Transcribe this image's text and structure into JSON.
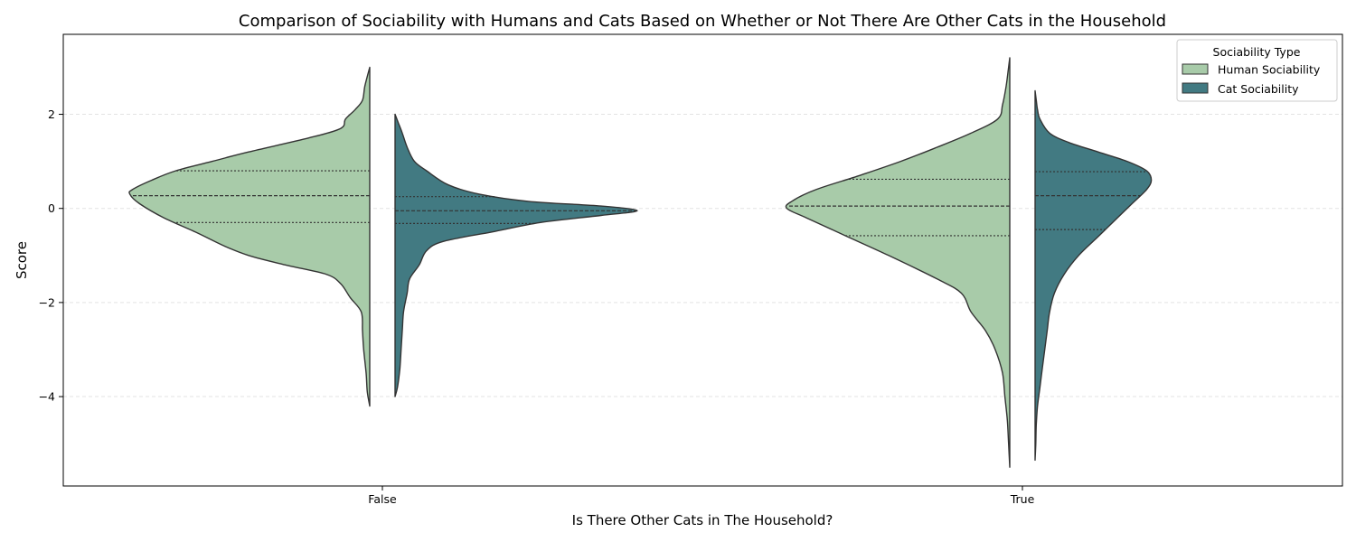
{
  "chart_data": {
    "type": "violin",
    "title": "Comparison of Sociability with Humans and Cats Based on Whether or Not There Are Other Cats in the Household",
    "xlabel": "Is There Other Cats in The Household?",
    "ylabel": "Score",
    "categories": [
      "False",
      "True"
    ],
    "ylim": [
      -5.9,
      3.7
    ],
    "yticks": [
      -4,
      -2,
      0,
      2
    ],
    "ytick_labels": [
      "−4",
      "−2",
      "0",
      "2"
    ],
    "grid": "horizontal dashed",
    "split": true,
    "inner": "quartile",
    "legend": {
      "title": "Sociability Type",
      "position": "top-right",
      "entries": [
        "Human Sociability",
        "Cat Sociability"
      ]
    },
    "series": [
      {
        "name": "Human Sociability",
        "color": "#a8cba9",
        "side": "left",
        "groups": [
          {
            "category": "False",
            "quartiles": [
              -0.3,
              0.27,
              0.8
            ],
            "profile": [
              [
                -4.2,
                0.0
              ],
              [
                -3.9,
                0.01
              ],
              [
                -3.5,
                0.015
              ],
              [
                -3.0,
                0.025
              ],
              [
                -2.6,
                0.03
              ],
              [
                -2.2,
                0.035
              ],
              [
                -1.9,
                0.08
              ],
              [
                -1.6,
                0.12
              ],
              [
                -1.4,
                0.18
              ],
              [
                -1.2,
                0.35
              ],
              [
                -1.0,
                0.5
              ],
              [
                -0.8,
                0.6
              ],
              [
                -0.5,
                0.72
              ],
              [
                -0.2,
                0.85
              ],
              [
                0.1,
                0.95
              ],
              [
                0.3,
                0.99
              ],
              [
                0.4,
                0.98
              ],
              [
                0.6,
                0.9
              ],
              [
                0.8,
                0.8
              ],
              [
                1.0,
                0.65
              ],
              [
                1.2,
                0.5
              ],
              [
                1.5,
                0.25
              ],
              [
                1.7,
                0.12
              ],
              [
                1.9,
                0.1
              ],
              [
                2.1,
                0.06
              ],
              [
                2.3,
                0.03
              ],
              [
                2.6,
                0.02
              ],
              [
                3.0,
                0.0
              ]
            ]
          },
          {
            "category": "True",
            "quartiles": [
              -0.58,
              0.05,
              0.62
            ],
            "profile": [
              [
                -5.5,
                0.0
              ],
              [
                -5.0,
                0.005
              ],
              [
                -4.5,
                0.01
              ],
              [
                -4.0,
                0.02
              ],
              [
                -3.5,
                0.03
              ],
              [
                -3.0,
                0.06
              ],
              [
                -2.6,
                0.1
              ],
              [
                -2.2,
                0.16
              ],
              [
                -1.8,
                0.2
              ],
              [
                -1.5,
                0.3
              ],
              [
                -1.0,
                0.5
              ],
              [
                -0.6,
                0.67
              ],
              [
                -0.2,
                0.84
              ],
              [
                0.0,
                0.92
              ],
              [
                0.15,
                0.9
              ],
              [
                0.4,
                0.8
              ],
              [
                0.7,
                0.62
              ],
              [
                1.0,
                0.45
              ],
              [
                1.3,
                0.3
              ],
              [
                1.6,
                0.16
              ],
              [
                1.9,
                0.05
              ],
              [
                2.2,
                0.03
              ],
              [
                2.6,
                0.015
              ],
              [
                3.0,
                0.005
              ],
              [
                3.2,
                0.0
              ]
            ]
          }
        ]
      },
      {
        "name": "Cat Sociability",
        "color": "#427a82",
        "side": "right",
        "groups": [
          {
            "category": "False",
            "quartiles": [
              -0.32,
              -0.05,
              0.25
            ],
            "profile": [
              [
                -4.0,
                0.0
              ],
              [
                -3.8,
                0.01
              ],
              [
                -3.4,
                0.02
              ],
              [
                -3.0,
                0.025
              ],
              [
                -2.6,
                0.03
              ],
              [
                -2.2,
                0.035
              ],
              [
                -1.8,
                0.05
              ],
              [
                -1.5,
                0.06
              ],
              [
                -1.2,
                0.1
              ],
              [
                -0.9,
                0.13
              ],
              [
                -0.7,
                0.2
              ],
              [
                -0.5,
                0.4
              ],
              [
                -0.3,
                0.6
              ],
              [
                -0.15,
                0.85
              ],
              [
                -0.05,
                1.0
              ],
              [
                0.05,
                0.85
              ],
              [
                0.15,
                0.55
              ],
              [
                0.3,
                0.35
              ],
              [
                0.5,
                0.22
              ],
              [
                0.8,
                0.13
              ],
              [
                1.0,
                0.08
              ],
              [
                1.3,
                0.05
              ],
              [
                1.6,
                0.03
              ],
              [
                1.8,
                0.015
              ],
              [
                2.0,
                0.0
              ]
            ]
          },
          {
            "category": "True",
            "quartiles": [
              -0.45,
              0.27,
              0.78
            ],
            "profile": [
              [
                -5.35,
                0.0
              ],
              [
                -5.0,
                0.003
              ],
              [
                -4.6,
                0.005
              ],
              [
                -4.2,
                0.01
              ],
              [
                -3.8,
                0.02
              ],
              [
                -3.4,
                0.03
              ],
              [
                -3.0,
                0.04
              ],
              [
                -2.6,
                0.05
              ],
              [
                -2.2,
                0.06
              ],
              [
                -1.8,
                0.08
              ],
              [
                -1.4,
                0.12
              ],
              [
                -1.0,
                0.18
              ],
              [
                -0.6,
                0.26
              ],
              [
                -0.2,
                0.34
              ],
              [
                0.1,
                0.4
              ],
              [
                0.4,
                0.46
              ],
              [
                0.6,
                0.48
              ],
              [
                0.8,
                0.46
              ],
              [
                1.0,
                0.38
              ],
              [
                1.2,
                0.26
              ],
              [
                1.4,
                0.14
              ],
              [
                1.6,
                0.06
              ],
              [
                1.9,
                0.02
              ],
              [
                2.1,
                0.01
              ],
              [
                2.3,
                0.005
              ],
              [
                2.5,
                0.0
              ]
            ]
          }
        ]
      }
    ]
  }
}
